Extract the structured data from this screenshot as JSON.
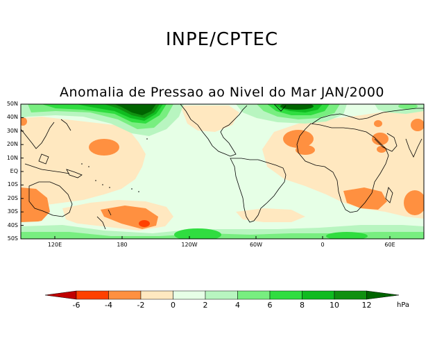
{
  "header": {
    "organization": "INPE/CPTEC",
    "map_title": "Anomalia de Pressao ao Nivel do Mar JAN/2000"
  },
  "map": {
    "lat_labels": [
      "50N",
      "40N",
      "30N",
      "20N",
      "10N",
      "EQ",
      "10S",
      "20S",
      "30S",
      "40S",
      "50S"
    ],
    "lon_labels": [
      "120E",
      "180",
      "120W",
      "60W",
      "0",
      "60E"
    ]
  },
  "colorbar": {
    "unit": "hPa",
    "levels": [
      "-6",
      "-4",
      "-2",
      "0",
      "2",
      "4",
      "6",
      "8",
      "10",
      "12"
    ],
    "colors": {
      "below_m6": "#c00000",
      "m6_m4": "#ff4000",
      "m4_m2": "#ff9040",
      "m2_0": "#ffe8c0",
      "0_2": "#e6ffe6",
      "2_4": "#b8f5c0",
      "4_6": "#78ee80",
      "6_8": "#30dd40",
      "8_10": "#10bb20",
      "10_12": "#109010",
      "above_12": "#006400"
    }
  }
}
